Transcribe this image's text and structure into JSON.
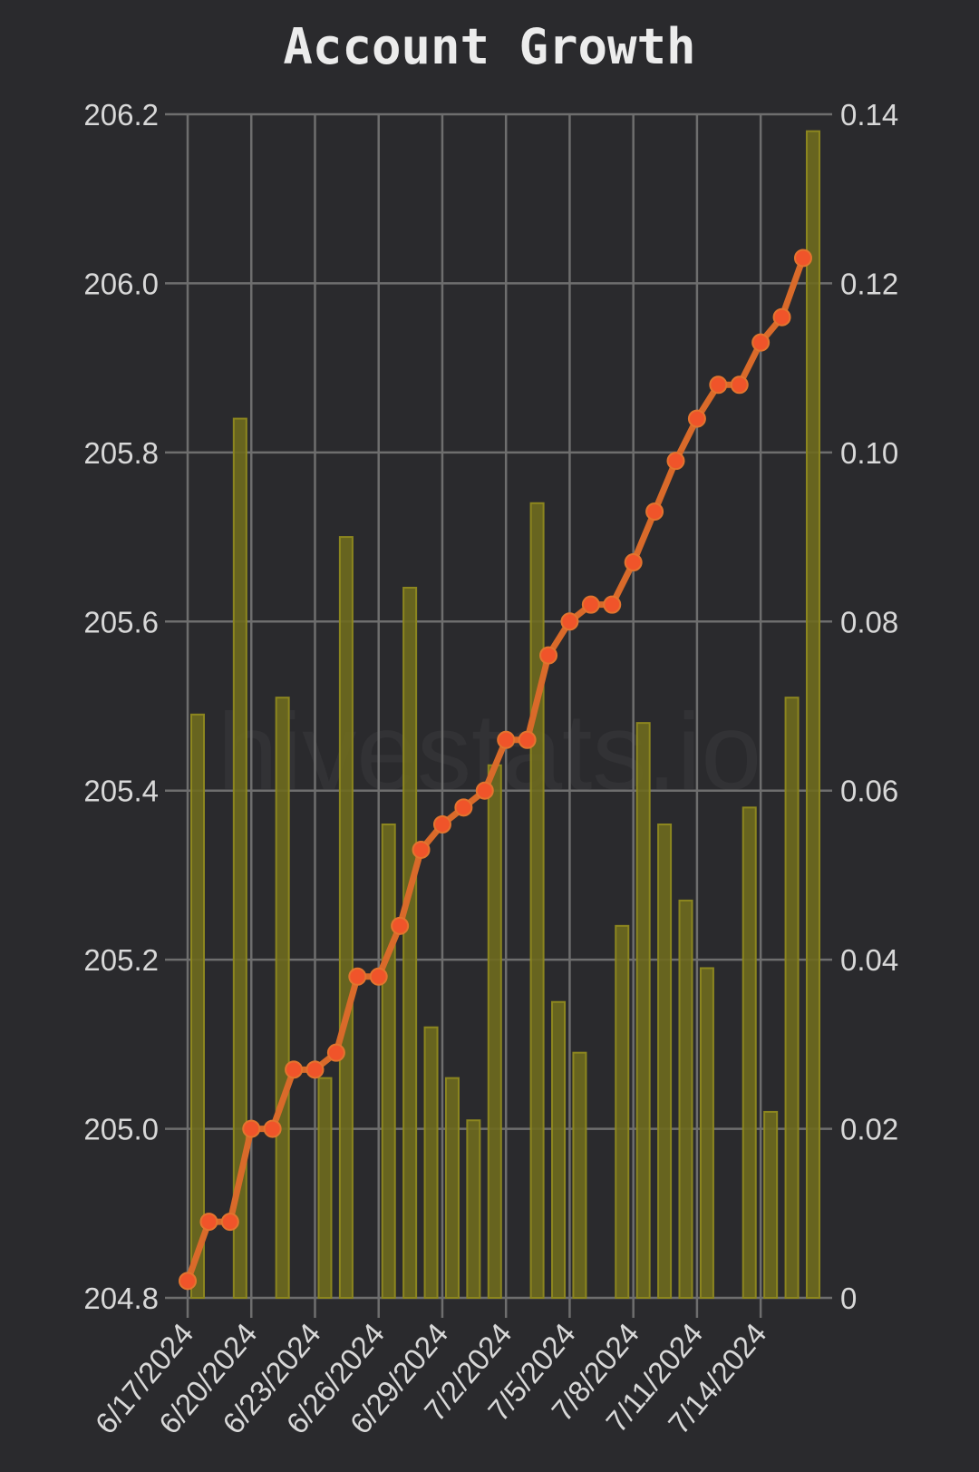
{
  "chart_data": {
    "type": "bar+line",
    "title": "Account Growth",
    "watermark": "hivestats.io",
    "x_tick_labels": [
      "6/17/2024",
      "6/20/2024",
      "6/23/2024",
      "6/26/2024",
      "6/29/2024",
      "7/2/2024",
      "7/5/2024",
      "7/8/2024",
      "7/11/2024",
      "7/14/2024"
    ],
    "left_axis": {
      "ylim": [
        204.8,
        206.2
      ],
      "ticks": [
        "204.8",
        "205.0",
        "205.2",
        "205.4",
        "205.6",
        "205.8",
        "206.0",
        "206.2"
      ]
    },
    "right_axis": {
      "ylim": [
        0,
        0.14
      ],
      "ticks": [
        "0",
        "0.02",
        "0.04",
        "0.06",
        "0.08",
        "0.10",
        "0.12",
        "0.14"
      ]
    },
    "dates": [
      "6/17/2024",
      "6/18/2024",
      "6/19/2024",
      "6/20/2024",
      "6/21/2024",
      "6/22/2024",
      "6/23/2024",
      "6/24/2024",
      "6/25/2024",
      "6/26/2024",
      "6/27/2024",
      "6/28/2024",
      "6/29/2024",
      "6/30/2024",
      "7/1/2024",
      "7/2/2024",
      "7/3/2024",
      "7/4/2024",
      "7/5/2024",
      "7/6/2024",
      "7/7/2024",
      "7/8/2024",
      "7/9/2024",
      "7/10/2024",
      "7/11/2024",
      "7/12/2024",
      "7/13/2024",
      "7/14/2024",
      "7/15/2024",
      "7/16/2024"
    ],
    "series": [
      {
        "axis": "left",
        "kind": "line",
        "color": "#d96a2a",
        "marker_color": "#f0542a",
        "values": [
          204.82,
          204.89,
          204.89,
          205.0,
          205.0,
          205.07,
          205.07,
          205.09,
          205.18,
          205.18,
          205.24,
          205.33,
          205.36,
          205.38,
          205.4,
          205.46,
          205.46,
          205.56,
          205.6,
          205.62,
          205.62,
          205.67,
          205.73,
          205.79,
          205.84,
          205.88,
          205.88,
          205.93,
          205.96,
          206.03
        ]
      },
      {
        "axis": "right",
        "kind": "bar",
        "color": "#6e6a1e",
        "edge_color": "#8c861f",
        "values": [
          0.069,
          0.0,
          0.104,
          0.0,
          0.071,
          0.0,
          0.026,
          0.09,
          0.0,
          0.056,
          0.084,
          0.032,
          0.026,
          0.021,
          0.063,
          0.0,
          0.094,
          0.035,
          0.029,
          0.0,
          0.044,
          0.068,
          0.056,
          0.047,
          0.039,
          0.0,
          0.058,
          0.022,
          0.071,
          0.138
        ]
      }
    ],
    "grid": true
  }
}
